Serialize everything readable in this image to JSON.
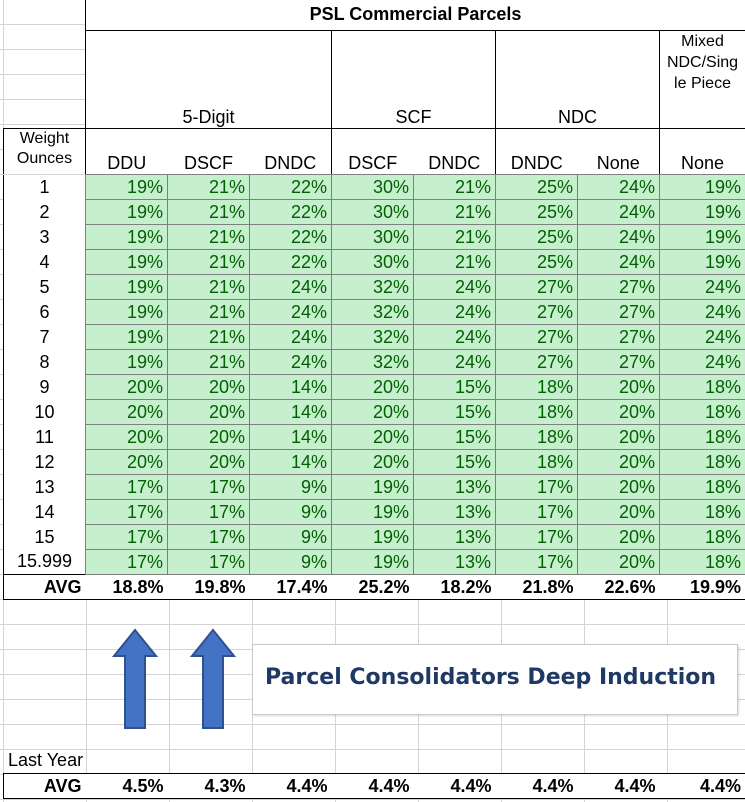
{
  "title": "PSL Commercial Parcels",
  "groups": {
    "five_digit": "5-Digit",
    "scf": "SCF",
    "ndc": "NDC",
    "mixed": "Mixed NDC/Sing le Piece",
    "mixed_line1": "Mixed",
    "mixed_line2": "NDC/Sing",
    "mixed_line3": "le Piece"
  },
  "weight_header_1": "Weight",
  "weight_header_2": "Ounces",
  "columns": [
    "DDU",
    "DSCF",
    "DNDC",
    "DSCF",
    "DNDC",
    "DNDC",
    "None",
    "None"
  ],
  "rows": [
    {
      "weight": "1",
      "values": [
        "19%",
        "21%",
        "22%",
        "30%",
        "21%",
        "25%",
        "24%",
        "19%"
      ]
    },
    {
      "weight": "2",
      "values": [
        "19%",
        "21%",
        "22%",
        "30%",
        "21%",
        "25%",
        "24%",
        "19%"
      ]
    },
    {
      "weight": "3",
      "values": [
        "19%",
        "21%",
        "22%",
        "30%",
        "21%",
        "25%",
        "24%",
        "19%"
      ]
    },
    {
      "weight": "4",
      "values": [
        "19%",
        "21%",
        "22%",
        "30%",
        "21%",
        "25%",
        "24%",
        "19%"
      ]
    },
    {
      "weight": "5",
      "values": [
        "19%",
        "21%",
        "24%",
        "32%",
        "24%",
        "27%",
        "27%",
        "24%"
      ]
    },
    {
      "weight": "6",
      "values": [
        "19%",
        "21%",
        "24%",
        "32%",
        "24%",
        "27%",
        "27%",
        "24%"
      ]
    },
    {
      "weight": "7",
      "values": [
        "19%",
        "21%",
        "24%",
        "32%",
        "24%",
        "27%",
        "27%",
        "24%"
      ]
    },
    {
      "weight": "8",
      "values": [
        "19%",
        "21%",
        "24%",
        "32%",
        "24%",
        "27%",
        "27%",
        "24%"
      ]
    },
    {
      "weight": "9",
      "values": [
        "20%",
        "20%",
        "14%",
        "20%",
        "15%",
        "18%",
        "20%",
        "18%"
      ]
    },
    {
      "weight": "10",
      "values": [
        "20%",
        "20%",
        "14%",
        "20%",
        "15%",
        "18%",
        "20%",
        "18%"
      ]
    },
    {
      "weight": "11",
      "values": [
        "20%",
        "20%",
        "14%",
        "20%",
        "15%",
        "18%",
        "20%",
        "18%"
      ]
    },
    {
      "weight": "12",
      "values": [
        "20%",
        "20%",
        "14%",
        "20%",
        "15%",
        "18%",
        "20%",
        "18%"
      ]
    },
    {
      "weight": "13",
      "values": [
        "17%",
        "17%",
        "9%",
        "19%",
        "13%",
        "17%",
        "20%",
        "18%"
      ]
    },
    {
      "weight": "14",
      "values": [
        "17%",
        "17%",
        "9%",
        "19%",
        "13%",
        "17%",
        "20%",
        "18%"
      ]
    },
    {
      "weight": "15",
      "values": [
        "17%",
        "17%",
        "9%",
        "19%",
        "13%",
        "17%",
        "20%",
        "18%"
      ]
    },
    {
      "weight": "15.999",
      "values": [
        "17%",
        "17%",
        "9%",
        "19%",
        "13%",
        "17%",
        "20%",
        "18%"
      ]
    }
  ],
  "avg_label": "AVG",
  "avg_values": [
    "18.8%",
    "19.8%",
    "17.4%",
    "25.2%",
    "18.2%",
    "21.8%",
    "22.6%",
    "19.9%"
  ],
  "callout_text": "Parcel Consolidators Deep Induction",
  "last_year_label": "Last Year",
  "last_year_avg_label": "AVG",
  "last_year_avg_values": [
    "4.5%",
    "4.3%",
    "4.4%",
    "4.4%",
    "4.4%",
    "4.4%",
    "4.4%",
    "4.4%"
  ],
  "colors": {
    "cell_fill": "#c6efce",
    "cell_text": "#006100",
    "arrow": "#4472c4",
    "callout_text": "#1f3864"
  }
}
